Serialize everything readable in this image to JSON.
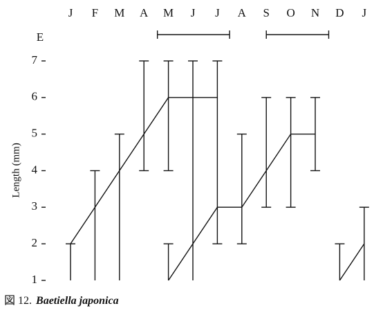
{
  "chart_data": {
    "type": "range-line",
    "y_label": "Length (mm)",
    "emergence_label": "E",
    "categories": [
      "J",
      "F",
      "M",
      "A",
      "M",
      "J",
      "J",
      "A",
      "S",
      "O",
      "N",
      "D",
      "J"
    ],
    "series": [
      {
        "color": "#111111",
        "values": [
          2,
          3,
          4,
          5,
          6,
          6,
          6,
          null,
          null,
          null,
          null,
          null,
          null
        ],
        "min": [
          1,
          1,
          1,
          4,
          4,
          1,
          2,
          null,
          null,
          null,
          null,
          null,
          null
        ],
        "max": [
          2,
          4,
          5,
          7,
          7,
          7,
          7,
          null,
          null,
          null,
          null,
          null,
          null
        ]
      },
      {
        "color": "#111111",
        "values": [
          null,
          null,
          null,
          null,
          1,
          2,
          3,
          3,
          4,
          5,
          5,
          null,
          null
        ],
        "min": [
          null,
          null,
          null,
          null,
          1,
          null,
          null,
          2,
          3,
          3,
          4,
          null,
          null
        ],
        "max": [
          null,
          null,
          null,
          null,
          2,
          null,
          null,
          5,
          6,
          6,
          6,
          null,
          null
        ]
      },
      {
        "color": "#111111",
        "values": [
          null,
          null,
          null,
          null,
          null,
          null,
          null,
          null,
          null,
          null,
          null,
          1,
          2
        ],
        "min": [
          null,
          null,
          null,
          null,
          null,
          null,
          null,
          null,
          null,
          null,
          null,
          1,
          1
        ],
        "max": [
          null,
          null,
          null,
          null,
          null,
          null,
          null,
          null,
          null,
          null,
          null,
          2,
          3
        ]
      }
    ],
    "emergence": [
      {
        "start": 3.55,
        "end": 6.5
      },
      {
        "start": 8,
        "end": 10.55
      }
    ],
    "ylim": [
      1,
      7
    ],
    "yticks": [
      1,
      2,
      3,
      4,
      5,
      6,
      7
    ],
    "caption_number": "図 12.",
    "caption_species": "Baetiella japonica"
  }
}
